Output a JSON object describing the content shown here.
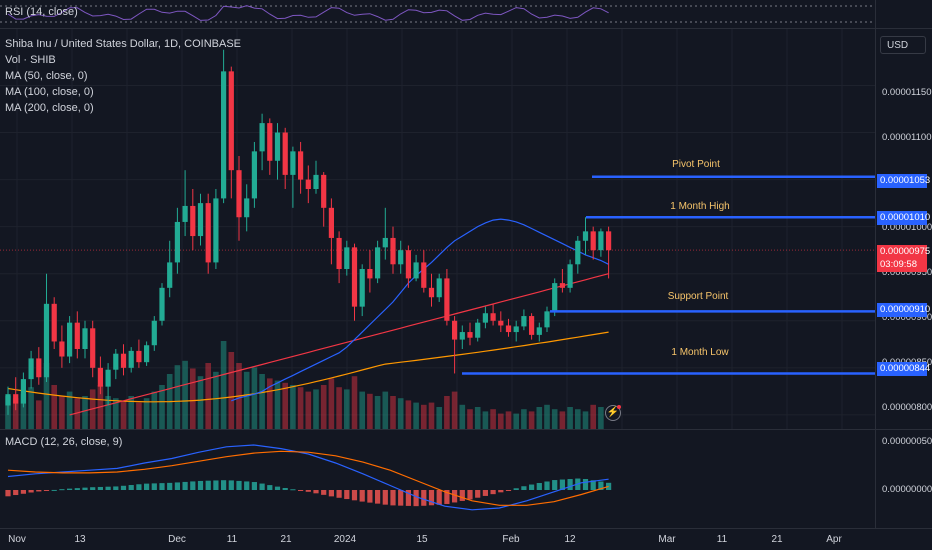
{
  "rsi": {
    "legend": "RSI (14, close)"
  },
  "main": {
    "legend": {
      "symbol": "Shiba Inu / United States Dollar, 1D, COINBASE",
      "volume": "Vol · SHIB",
      "ma50": "MA (50, close, 0)",
      "ma100": "MA (100, close, 0)",
      "ma200": "MA (200, close, 0)"
    },
    "currency": "USD",
    "price_ticks": [
      "0.00001150",
      "0.00001100",
      "0.00001000",
      "0.00000950",
      "0.00000900",
      "0.00000850",
      "0.00000800"
    ],
    "levels": {
      "pivot": {
        "label": "Pivot Point",
        "price": "0.00001053"
      },
      "high": {
        "label": "1 Month High",
        "price": "0.00001010"
      },
      "support": {
        "label": "Support Point",
        "price": "0.00000910"
      },
      "low": {
        "label": "1 Month Low",
        "price": "0.00000844"
      }
    },
    "last_price": "0.00000975",
    "countdown": "03:09:58"
  },
  "macd": {
    "legend": "MACD (12, 26, close, 9)",
    "ticks": [
      "0.00000050",
      "0.00000000"
    ]
  },
  "time_axis": [
    "Nov",
    "13",
    "Dec",
    "11",
    "21",
    "2024",
    "15",
    "Feb",
    "12",
    "Mar",
    "11",
    "21",
    "Apr"
  ],
  "colors": {
    "up": "#22ab94",
    "down": "#f23645",
    "ma50": "#2962ff",
    "ma100": "#f23645",
    "ma200": "#ff9800",
    "level_line": "#2962ff",
    "level_text": "#f7c56b",
    "macd_line": "#2962ff",
    "signal_line": "#ff6d00"
  },
  "chart_data": {
    "type": "candlestick",
    "title": "Shiba Inu / United States Dollar, 1D, COINBASE",
    "y_range": [
      7.85e-06,
      1.21e-05
    ],
    "candles": [
      {
        "o": 8.1e-06,
        "h": 8.3e-06,
        "l": 8e-06,
        "c": 8.22e-06
      },
      {
        "o": 8.22e-06,
        "h": 8.4e-06,
        "l": 8.05e-06,
        "c": 8.12e-06
      },
      {
        "o": 8.12e-06,
        "h": 8.45e-06,
        "l": 8.08e-06,
        "c": 8.38e-06
      },
      {
        "o": 8.38e-06,
        "h": 8.68e-06,
        "l": 8.28e-06,
        "c": 8.6e-06
      },
      {
        "o": 8.6e-06,
        "h": 8.72e-06,
        "l": 8.32e-06,
        "c": 8.4e-06
      },
      {
        "o": 8.4e-06,
        "h": 9.5e-06,
        "l": 8.35e-06,
        "c": 9.18e-06
      },
      {
        "o": 9.18e-06,
        "h": 9.25e-06,
        "l": 8.7e-06,
        "c": 8.78e-06
      },
      {
        "o": 8.78e-06,
        "h": 8.95e-06,
        "l": 8.5e-06,
        "c": 8.62e-06
      },
      {
        "o": 8.62e-06,
        "h": 9.05e-06,
        "l": 8.55e-06,
        "c": 8.98e-06
      },
      {
        "o": 8.98e-06,
        "h": 9.1e-06,
        "l": 8.6e-06,
        "c": 8.7e-06
      },
      {
        "o": 8.7e-06,
        "h": 9e-06,
        "l": 8.6e-06,
        "c": 8.92e-06
      },
      {
        "o": 8.92e-06,
        "h": 9e-06,
        "l": 8.4e-06,
        "c": 8.5e-06
      },
      {
        "o": 8.5e-06,
        "h": 8.62e-06,
        "l": 8.22e-06,
        "c": 8.3e-06
      },
      {
        "o": 8.3e-06,
        "h": 8.55e-06,
        "l": 8.1e-06,
        "c": 8.48e-06
      },
      {
        "o": 8.48e-06,
        "h": 8.7e-06,
        "l": 8.38e-06,
        "c": 8.65e-06
      },
      {
        "o": 8.65e-06,
        "h": 8.75e-06,
        "l": 8.42e-06,
        "c": 8.5e-06
      },
      {
        "o": 8.5e-06,
        "h": 8.72e-06,
        "l": 8.45e-06,
        "c": 8.68e-06
      },
      {
        "o": 8.68e-06,
        "h": 8.8e-06,
        "l": 8.5e-06,
        "c": 8.56e-06
      },
      {
        "o": 8.56e-06,
        "h": 8.78e-06,
        "l": 8.52e-06,
        "c": 8.74e-06
      },
      {
        "o": 8.74e-06,
        "h": 9.05e-06,
        "l": 8.68e-06,
        "c": 9e-06
      },
      {
        "o": 9e-06,
        "h": 9.4e-06,
        "l": 8.95e-06,
        "c": 9.35e-06
      },
      {
        "o": 9.35e-06,
        "h": 9.85e-06,
        "l": 9.25e-06,
        "c": 9.62e-06
      },
      {
        "o": 9.62e-06,
        "h": 1.02e-05,
        "l": 9.5e-06,
        "c": 1.005e-05
      },
      {
        "o": 1.005e-05,
        "h": 1.06e-05,
        "l": 9.9e-06,
        "c": 1.022e-05
      },
      {
        "o": 1.022e-05,
        "h": 1.04e-05,
        "l": 9.75e-06,
        "c": 9.9e-06
      },
      {
        "o": 9.9e-06,
        "h": 1.035e-05,
        "l": 9.8e-06,
        "c": 1.025e-05
      },
      {
        "o": 1.025e-05,
        "h": 1.035e-05,
        "l": 9.5e-06,
        "c": 9.62e-06
      },
      {
        "o": 9.62e-06,
        "h": 1.04e-05,
        "l": 9.55e-06,
        "c": 1.03e-05
      },
      {
        "o": 1.03e-05,
        "h": 1.188e-05,
        "l": 1.025e-05,
        "c": 1.165e-05
      },
      {
        "o": 1.165e-05,
        "h": 1.17e-05,
        "l": 1.03e-05,
        "c": 1.06e-05
      },
      {
        "o": 1.06e-05,
        "h": 1.075e-05,
        "l": 9.85e-06,
        "c": 1.01e-05
      },
      {
        "o": 1.01e-05,
        "h": 1.045e-05,
        "l": 9.95e-06,
        "c": 1.03e-05
      },
      {
        "o": 1.03e-05,
        "h": 1.09e-05,
        "l": 1.02e-05,
        "c": 1.08e-05
      },
      {
        "o": 1.08e-05,
        "h": 1.12e-05,
        "l": 1.06e-05,
        "c": 1.11e-05
      },
      {
        "o": 1.11e-05,
        "h": 1.115e-05,
        "l": 1.055e-05,
        "c": 1.07e-05
      },
      {
        "o": 1.07e-05,
        "h": 1.11e-05,
        "l": 1.05e-05,
        "c": 1.1e-05
      },
      {
        "o": 1.1e-05,
        "h": 1.105e-05,
        "l": 1.04e-05,
        "c": 1.055e-05
      },
      {
        "o": 1.055e-05,
        "h": 1.085e-05,
        "l": 1.02e-05,
        "c": 1.08e-05
      },
      {
        "o": 1.08e-05,
        "h": 1.09e-05,
        "l": 1.035e-05,
        "c": 1.05e-05
      },
      {
        "o": 1.05e-05,
        "h": 1.065e-05,
        "l": 1.025e-05,
        "c": 1.04e-05
      },
      {
        "o": 1.04e-05,
        "h": 1.07e-05,
        "l": 1.035e-05,
        "c": 1.055e-05
      },
      {
        "o": 1.055e-05,
        "h": 1.058e-05,
        "l": 1e-05,
        "c": 1.02e-05
      },
      {
        "o": 1.02e-05,
        "h": 1.03e-05,
        "l": 9.6e-06,
        "c": 9.88e-06
      },
      {
        "o": 9.88e-06,
        "h": 9.95e-06,
        "l": 9.4e-06,
        "c": 9.55e-06
      },
      {
        "o": 9.55e-06,
        "h": 9.85e-06,
        "l": 9.48e-06,
        "c": 9.78e-06
      },
      {
        "o": 9.78e-06,
        "h": 9.82e-06,
        "l": 9e-06,
        "c": 9.15e-06
      },
      {
        "o": 9.15e-06,
        "h": 9.6e-06,
        "l": 9.05e-06,
        "c": 9.55e-06
      },
      {
        "o": 9.55e-06,
        "h": 9.75e-06,
        "l": 9.3e-06,
        "c": 9.45e-06
      },
      {
        "o": 9.45e-06,
        "h": 9.85e-06,
        "l": 9.4e-06,
        "c": 9.78e-06
      },
      {
        "o": 9.78e-06,
        "h": 1.02e-05,
        "l": 9.65e-06,
        "c": 9.88e-06
      },
      {
        "o": 9.88e-06,
        "h": 1e-05,
        "l": 9.5e-06,
        "c": 9.6e-06
      },
      {
        "o": 9.6e-06,
        "h": 9.85e-06,
        "l": 9.5e-06,
        "c": 9.75e-06
      },
      {
        "o": 9.75e-06,
        "h": 9.8e-06,
        "l": 9.35e-06,
        "c": 9.45e-06
      },
      {
        "o": 9.45e-06,
        "h": 9.7e-06,
        "l": 9.42e-06,
        "c": 9.62e-06
      },
      {
        "o": 9.62e-06,
        "h": 9.75e-06,
        "l": 9.3e-06,
        "c": 9.35e-06
      },
      {
        "o": 9.35e-06,
        "h": 9.5e-06,
        "l": 9.15e-06,
        "c": 9.25e-06
      },
      {
        "o": 9.25e-06,
        "h": 9.5e-06,
        "l": 9.2e-06,
        "c": 9.45e-06
      },
      {
        "o": 9.45e-06,
        "h": 9.55e-06,
        "l": 8.95e-06,
        "c": 9e-06
      },
      {
        "o": 9e-06,
        "h": 9.05e-06,
        "l": 8.44e-06,
        "c": 8.8e-06
      },
      {
        "o": 8.8e-06,
        "h": 8.95e-06,
        "l": 8.7e-06,
        "c": 8.88e-06
      },
      {
        "o": 8.88e-06,
        "h": 8.98e-06,
        "l": 8.74e-06,
        "c": 8.82e-06
      },
      {
        "o": 8.82e-06,
        "h": 9.02e-06,
        "l": 8.78e-06,
        "c": 8.98e-06
      },
      {
        "o": 8.98e-06,
        "h": 9.15e-06,
        "l": 8.92e-06,
        "c": 9.08e-06
      },
      {
        "o": 9.08e-06,
        "h": 9.18e-06,
        "l": 8.95e-06,
        "c": 9e-06
      },
      {
        "o": 9e-06,
        "h": 9.1e-06,
        "l": 8.88e-06,
        "c": 8.95e-06
      },
      {
        "o": 8.95e-06,
        "h": 9.02e-06,
        "l": 8.83e-06,
        "c": 8.88e-06
      },
      {
        "o": 8.88e-06,
        "h": 9e-06,
        "l": 8.78e-06,
        "c": 8.94e-06
      },
      {
        "o": 8.94e-06,
        "h": 9.12e-06,
        "l": 8.9e-06,
        "c": 9.05e-06
      },
      {
        "o": 9.05e-06,
        "h": 9.08e-06,
        "l": 8.8e-06,
        "c": 8.85e-06
      },
      {
        "o": 8.85e-06,
        "h": 8.98e-06,
        "l": 8.78e-06,
        "c": 8.93e-06
      },
      {
        "o": 8.93e-06,
        "h": 9.15e-06,
        "l": 8.88e-06,
        "c": 9.1e-06
      },
      {
        "o": 9.1e-06,
        "h": 9.45e-06,
        "l": 9.05e-06,
        "c": 9.4e-06
      },
      {
        "o": 9.4e-06,
        "h": 9.55e-06,
        "l": 9.3e-06,
        "c": 9.35e-06
      },
      {
        "o": 9.35e-06,
        "h": 9.65e-06,
        "l": 9.3e-06,
        "c": 9.6e-06
      },
      {
        "o": 9.6e-06,
        "h": 9.9e-06,
        "l": 9.5e-06,
        "c": 9.85e-06
      },
      {
        "o": 9.85e-06,
        "h": 1.01e-05,
        "l": 9.7e-06,
        "c": 9.95e-06
      },
      {
        "o": 9.95e-06,
        "h": 1e-05,
        "l": 9.65e-06,
        "c": 9.75e-06
      },
      {
        "o": 9.75e-06,
        "h": 9.98e-06,
        "l": 9.68e-06,
        "c": 9.95e-06
      },
      {
        "o": 9.95e-06,
        "h": 1e-05,
        "l": 9.45e-06,
        "c": 9.75e-06
      }
    ],
    "volume": [
      30,
      28,
      32,
      38,
      26,
      60,
      40,
      30,
      34,
      28,
      30,
      36,
      40,
      30,
      28,
      26,
      30,
      24,
      28,
      34,
      40,
      50,
      58,
      62,
      55,
      48,
      60,
      52,
      80,
      70,
      60,
      52,
      56,
      50,
      46,
      44,
      42,
      40,
      38,
      34,
      36,
      40,
      46,
      38,
      36,
      48,
      34,
      32,
      30,
      34,
      30,
      28,
      26,
      24,
      22,
      24,
      20,
      30,
      34,
      22,
      18,
      20,
      16,
      18,
      14,
      16,
      14,
      18,
      16,
      20,
      22,
      18,
      16,
      20,
      18,
      16,
      22,
      20
    ],
    "ma50": [
      8.15e-06,
      8.18e-06,
      8.2e-06,
      8.22e-06,
      8.25e-06,
      8.3e-06,
      8.34e-06,
      8.38e-06,
      8.42e-06,
      8.46e-06,
      8.5e-06,
      8.54e-06,
      8.58e-06,
      8.62e-06,
      8.66e-06,
      8.72e-06,
      8.8e-06,
      8.88e-06,
      8.96e-06,
      9.04e-06,
      9.12e-06,
      9.2e-06,
      9.3e-06,
      9.4e-06,
      9.48e-06,
      9.55e-06,
      9.62e-06,
      9.7e-06,
      9.78e-06,
      9.85e-06,
      9.9e-06,
      9.95e-06,
      1e-05,
      1.004e-05,
      1.007e-05,
      1.008e-05,
      1.007e-05,
      1.005e-05,
      1.002e-05,
      9.98e-06,
      9.94e-06,
      9.9e-06,
      9.86e-06,
      9.82e-06,
      9.78e-06,
      9.74e-06,
      9.7e-06,
      9.67e-06,
      9.64e-06,
      9.6e-06
    ],
    "macd": {
      "macd_line": [
        1.5e-07,
        1.8e-07,
        2e-07,
        2.2e-07,
        2.4e-07,
        3e-07,
        3.5e-07,
        4.2e-07,
        4.8e-07,
        5e-07,
        4.6e-07,
        4e-07,
        3e-07,
        1.8e-07,
        5e-08,
        -8e-08,
        -1.8e-07,
        -2.2e-07,
        -2e-07,
        -1.2e-07,
        -2e-08,
        8e-08,
        1.2e-07
      ],
      "signal_line": [
        2.2e-07,
        2e-07,
        1.9e-07,
        1.9e-07,
        2e-07,
        2.3e-07,
        2.7e-07,
        3.2e-07,
        3.7e-07,
        4.1e-07,
        4.3e-07,
        4.2e-07,
        3.8e-07,
        3.1e-07,
        2.2e-07,
        1e-07,
        -2e-08,
        -1.2e-07,
        -1.7e-07,
        -1.7e-07,
        -1.3e-07,
        -5e-08,
        4e-08
      ]
    }
  }
}
